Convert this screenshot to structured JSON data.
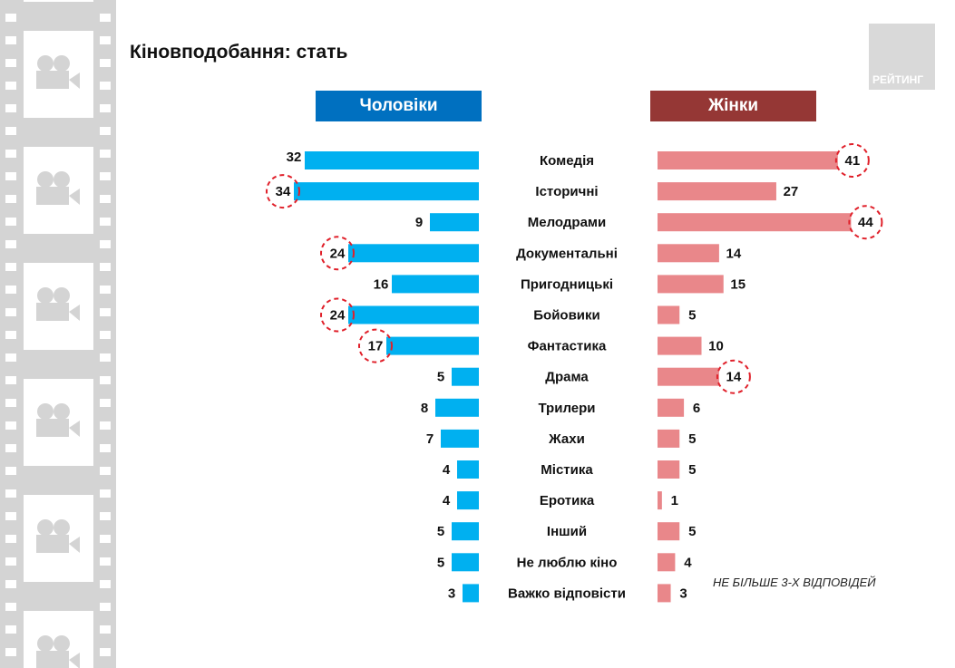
{
  "title": "Кіновподобання: стать",
  "logo": "РЕЙТИНГ",
  "note": "НЕ БІЛЬШЕ 3-Х ВІДПОВІДЕЙ",
  "colors": {
    "men_header": "#0070c0",
    "women_header": "#953735",
    "men_bar": "#00b0f0",
    "women_bar": "#e9878a",
    "highlight": "#e0202a",
    "film": "#d4d4d4"
  },
  "chart_data": {
    "type": "bar",
    "orientation": "horizontal-butterfly",
    "categories": [
      "Комедія",
      "Історичні",
      "Мелодрами",
      "Документальні",
      "Пригодницькі",
      "Бойовики",
      "Фантастика",
      "Драма",
      "Трилери",
      "Жахи",
      "Містика",
      "Еротика",
      "Інший",
      "Не люблю кіно",
      "Важко відповісти"
    ],
    "series": [
      {
        "name": "Чоловіки",
        "values": [
          32,
          34,
          9,
          24,
          16,
          24,
          17,
          5,
          8,
          7,
          4,
          4,
          5,
          5,
          3
        ],
        "highlighted": [
          1,
          3,
          5,
          6
        ]
      },
      {
        "name": "Жінки",
        "values": [
          41,
          27,
          44,
          14,
          15,
          5,
          10,
          14,
          6,
          5,
          5,
          1,
          5,
          4,
          3
        ],
        "highlighted": [
          0,
          2,
          7
        ]
      }
    ],
    "unit": "%"
  }
}
